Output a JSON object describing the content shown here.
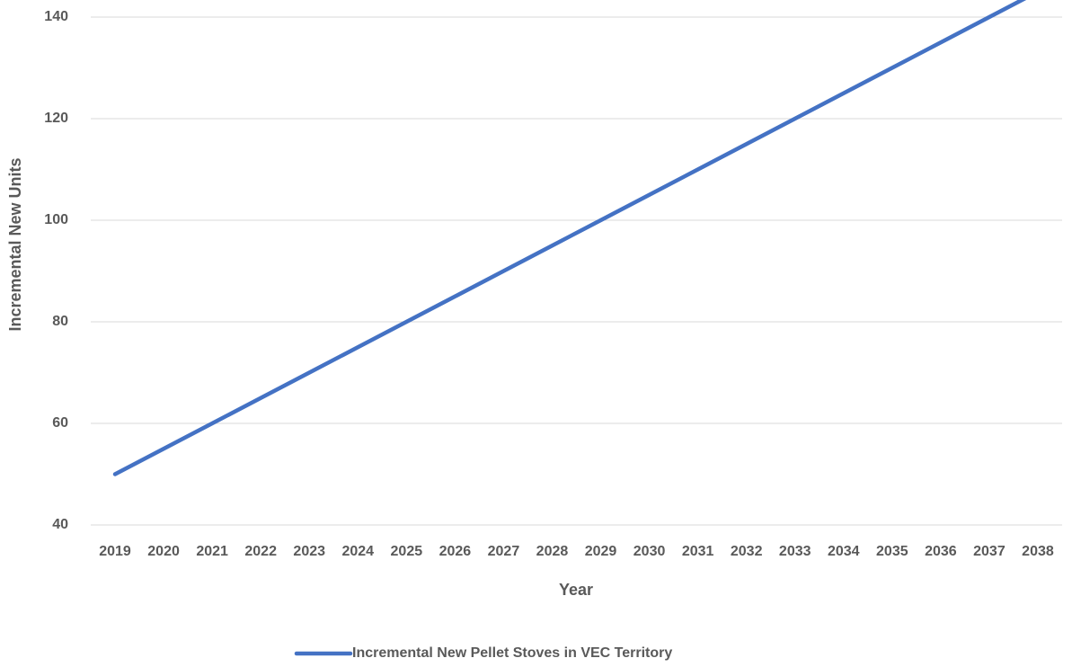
{
  "chart_data": {
    "type": "line",
    "x_label": "Year",
    "y_label": "Incremental New Units",
    "categories": [
      "2019",
      "2020",
      "2021",
      "2022",
      "2023",
      "2024",
      "2025",
      "2026",
      "2027",
      "2028",
      "2029",
      "2030",
      "2031",
      "2032",
      "2033",
      "2034",
      "2035",
      "2036",
      "2037",
      "2038"
    ],
    "series": [
      {
        "name": "Incremental New Pellet Stoves in VEC Territory",
        "color": "#4472c4",
        "values": [
          50,
          55,
          60,
          65,
          70,
          75,
          80,
          85,
          90,
          95,
          100,
          105,
          110,
          115,
          120,
          125,
          130,
          135,
          140,
          145
        ]
      }
    ],
    "ylim": [
      40,
      140
    ],
    "yticks": [
      40,
      60,
      80,
      100,
      120,
      140
    ],
    "grid": true,
    "legend": "bottom"
  }
}
